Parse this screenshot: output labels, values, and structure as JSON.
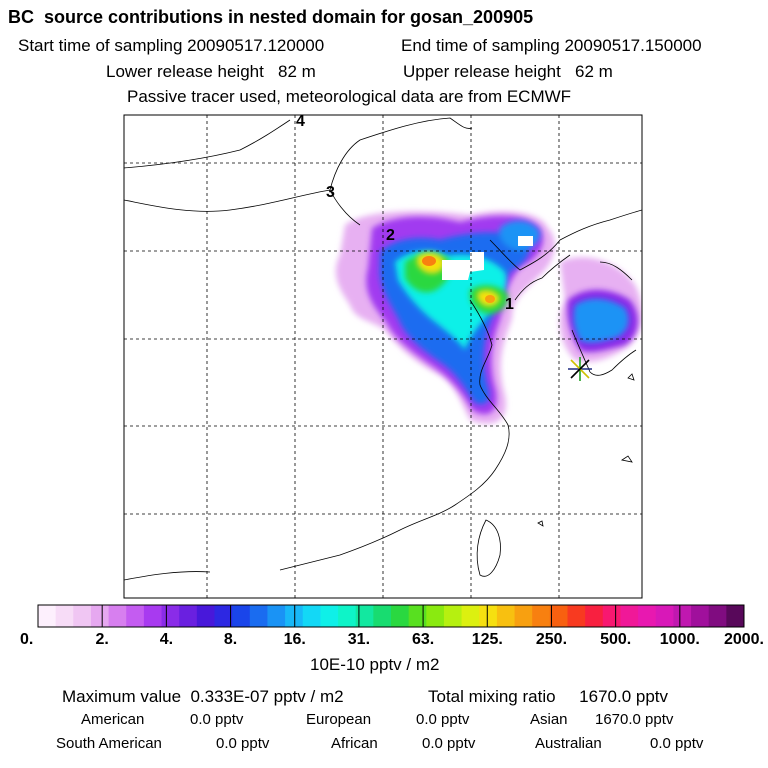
{
  "header": {
    "title": "BC  source contributions in nested domain for gosan_200905",
    "start_label": "Start time of sampling 20090517.120000",
    "end_label": "End time of sampling 20090517.150000",
    "lower_label": "Lower release height   82 m",
    "upper_label": "Upper release height   62 m",
    "tracer_note": "Passive tracer used, meteorological data are from ECMWF"
  },
  "chart_data": {
    "type": "heatmap",
    "title": "BC  source contributions in nested domain for gosan_200905",
    "trajectory_labels": [
      "1",
      "2",
      "3",
      "4"
    ],
    "receptor_marker": "star",
    "grid": true,
    "colorbar": {
      "tick_labels": [
        "0.",
        "2.",
        "4.",
        "8.",
        "16.",
        "31.",
        "63.",
        "125.",
        "250.",
        "500.",
        "1000.",
        "2000."
      ],
      "unit_label": "10E-10 pptv / m2",
      "colors": [
        "#fdf0fd",
        "#f7dcf7",
        "#f0c6f3",
        "#e6a8f0",
        "#d77fef",
        "#c45cf1",
        "#a83af0",
        "#8a2ce8",
        "#6a20e0",
        "#4818da",
        "#2d28e2",
        "#1a45ea",
        "#1a6cf0",
        "#1a93f5",
        "#18b8f8",
        "#13d8f6",
        "#0ff0e8",
        "#0ef4c8",
        "#12e8a0",
        "#18dc70",
        "#2ad840",
        "#58e020",
        "#8aea10",
        "#b6f010",
        "#dcf010",
        "#f6e010",
        "#f8c010",
        "#f8a010",
        "#f88010",
        "#f86010",
        "#f83a20",
        "#f82040",
        "#f81870",
        "#f01898",
        "#e818b0",
        "#d818b8",
        "#c018b0",
        "#a0109c",
        "#800c80",
        "#58085a"
      ]
    },
    "max_value": "0.333E-07",
    "total_mixing_ratio": "1670.0"
  },
  "footer": {
    "max_line": "Maximum value  0.333E-07 pptv / m2",
    "total_line": "Total mixing ratio     1670.0 pptv",
    "regions": [
      {
        "name": "American",
        "value": "0.0 pptv"
      },
      {
        "name": "European",
        "value": "0.0 pptv"
      },
      {
        "name": "Asian",
        "value": "1670.0 pptv"
      },
      {
        "name": "South American",
        "value": "0.0 pptv"
      },
      {
        "name": "African",
        "value": "0.0 pptv"
      },
      {
        "name": "Australian",
        "value": "0.0 pptv"
      }
    ]
  }
}
